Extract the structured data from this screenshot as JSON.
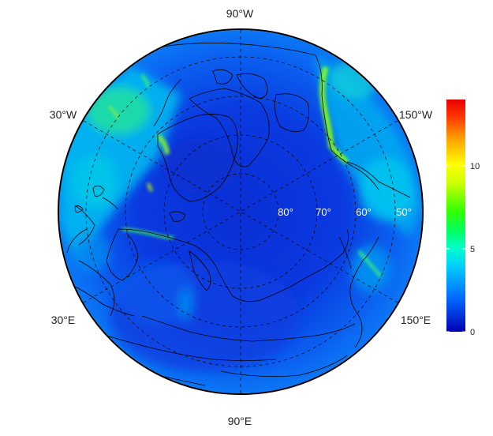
{
  "map": {
    "projection": "polar-stereographic-north",
    "longitude_labels": {
      "top": "90°W",
      "upper_left": "30°W",
      "upper_right": "150°W",
      "lower_left": "30°E",
      "lower_right": "150°E",
      "bottom": "90°E"
    },
    "latitude_labels": [
      "80°",
      "70°",
      "60°",
      "50°"
    ],
    "colorbar": {
      "min": 0,
      "max": 14,
      "ticks": [
        "0",
        "5",
        "10"
      ],
      "colors": [
        "#0000b4",
        "#0066ff",
        "#00ccff",
        "#00ff99",
        "#33ff00",
        "#ccff00",
        "#ffff00",
        "#ff9900",
        "#ff3300",
        "#e60000"
      ]
    },
    "colors": {
      "background_field": "#0a2fd6",
      "land_outline": "#000000",
      "graticule": "#000000"
    }
  }
}
